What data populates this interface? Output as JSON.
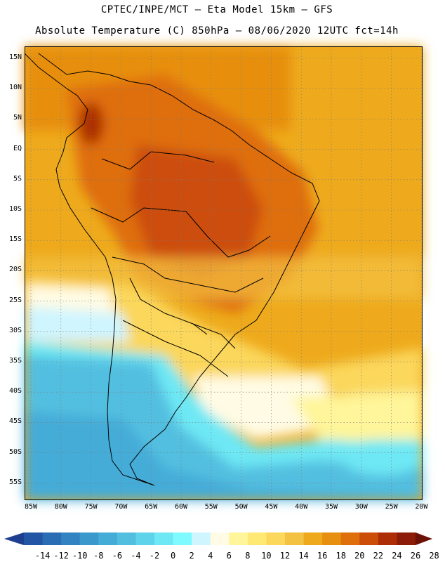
{
  "header": {
    "line1": "CPTEC/INPE/MCT –  Eta Model 15km – GFS",
    "line2": "Absolute Temperature (C) 850hPa – 08/06/2020 12UTC fct=14h"
  },
  "axes": {
    "lat_labels": [
      "15N",
      "10N",
      "5N",
      "EQ",
      "5S",
      "10S",
      "15S",
      "20S",
      "25S",
      "30S",
      "35S",
      "40S",
      "45S",
      "50S",
      "55S"
    ],
    "lon_labels": [
      "85W",
      "80W",
      "75W",
      "70W",
      "65W",
      "60W",
      "55W",
      "50W",
      "45W",
      "40W",
      "35W",
      "30W",
      "25W",
      "20W"
    ]
  },
  "colorbar": {
    "labels": [
      "-14",
      "-12",
      "-10",
      "-8",
      "-6",
      "-4",
      "-2",
      "0",
      "2",
      "4",
      "6",
      "8",
      "10",
      "12",
      "14",
      "16",
      "18",
      "20",
      "22",
      "24",
      "26",
      "28"
    ],
    "colors": [
      "#1e3f8f",
      "#2256a4",
      "#2a6db4",
      "#3283c2",
      "#3a98cd",
      "#45acd8",
      "#52bfe0",
      "#5fd3ea",
      "#6ee8f4",
      "#7ffaff",
      "#cff5ff",
      "#fffbe4",
      "#fff59a",
      "#ffe873",
      "#fbd75b",
      "#f3c242",
      "#eeaa1c",
      "#e78f10",
      "#df6e0c",
      "#cc4d08",
      "#ac2d06",
      "#8c1c07",
      "#6b1108"
    ]
  },
  "icons": {
    "left": "colorbar-left-arrow-icon",
    "right": "colorbar-right-arrow-icon"
  }
}
